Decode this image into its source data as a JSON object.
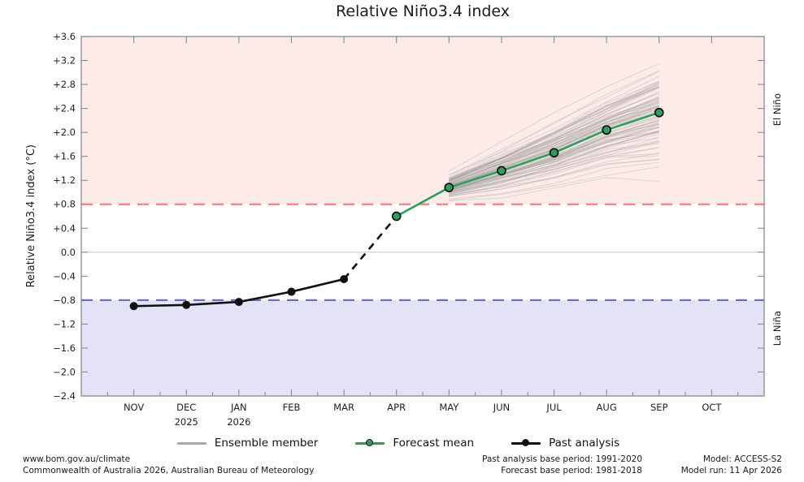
{
  "title": "Relative Niño3.4 index",
  "colors": {
    "el_nino_band": "#fcebe9",
    "la_nina_band": "#e3e2f6",
    "el_nino_line": "#f57e7e",
    "la_nina_line": "#6e6ec4",
    "el_nino_text": "#e46b6b",
    "la_nina_text": "#7b7bc1",
    "forecast_green": "#2d9e5e",
    "past_black": "#111111",
    "ensemble_gray": "#9a9a9a",
    "zero_line": "#cbcbcb",
    "frame": "#8a8a8a",
    "tick_text": "#222222"
  },
  "bands": {
    "el_nino": {
      "label": "El Niño",
      "threshold": 0.8
    },
    "la_nina": {
      "label": "La Niña",
      "threshold": -0.8
    }
  },
  "chart_data": {
    "type": "line",
    "title": "Relative Niño3.4 index",
    "ylabel": "Relative Niño3.4 index (°C)",
    "ylim": [
      -2.4,
      3.6
    ],
    "ytick_step": 0.4,
    "grid": "zero-line-only",
    "legend_position": "bottom-center",
    "categories": [
      "NOV",
      "DEC",
      "JAN",
      "FEB",
      "MAR",
      "APR",
      "MAY",
      "JUN",
      "JUL",
      "AUG",
      "SEP",
      "OCT"
    ],
    "year_row": [
      "",
      "2025",
      "2026",
      "",
      "",
      "",
      "",
      "",
      "",
      "",
      "",
      ""
    ],
    "series": [
      {
        "name": "Past analysis",
        "style": "solid-black-dots",
        "months": [
          "NOV",
          "DEC",
          "JAN",
          "FEB",
          "MAR"
        ],
        "values": [
          -0.9,
          -0.88,
          -0.83,
          -0.66,
          -0.45
        ]
      },
      {
        "name": "Observation-to-forecast bridge",
        "style": "dashed-black",
        "months": [
          "MAR",
          "APR"
        ],
        "values": [
          -0.45,
          0.6
        ]
      },
      {
        "name": "Forecast mean",
        "style": "solid-green-circles",
        "months": [
          "APR",
          "MAY",
          "JUN",
          "JUL",
          "AUG",
          "SEP"
        ],
        "values": [
          0.6,
          1.08,
          1.36,
          1.66,
          2.04,
          2.33
        ]
      },
      {
        "name": "Ensemble member",
        "style": "thin-gray-fan",
        "rendered_as": "generated-envelope",
        "months": [
          "MAY",
          "JUN",
          "JUL",
          "AUG",
          "SEP"
        ],
        "mean": [
          1.08,
          1.36,
          1.66,
          2.04,
          2.33
        ],
        "min": [
          0.85,
          0.92,
          1.05,
          1.2,
          1.2
        ],
        "max": [
          1.35,
          1.82,
          2.3,
          2.8,
          3.25
        ],
        "count": 88,
        "seed": 42,
        "opacity": 0.3
      }
    ],
    "thresholds": [
      {
        "value": 0.8,
        "label": "El Niño",
        "style": "red-dashed"
      },
      {
        "value": -0.8,
        "label": "La Niña",
        "style": "blue-dashed"
      }
    ]
  },
  "legend": {
    "items": [
      {
        "label": "Ensemble member"
      },
      {
        "label": "Forecast mean"
      },
      {
        "label": "Past analysis"
      }
    ]
  },
  "footer": {
    "site": "www.bom.gov.au/climate",
    "copyright": "Commonwealth of Australia 2026, Australian Bureau of Meteorology",
    "past_base": "Past analysis base period: 1991-2020",
    "forecast_base": "Forecast base period: 1981-2018",
    "model": "Model: ACCESS-S2",
    "model_run": "Model run: 11 Apr 2026"
  }
}
